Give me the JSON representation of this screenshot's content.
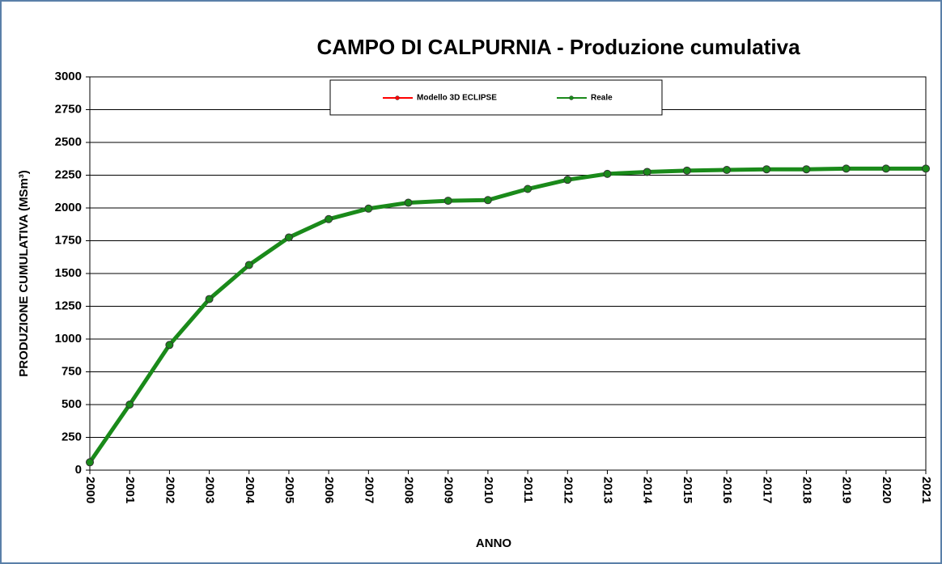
{
  "chart_data": {
    "type": "line",
    "title": "CAMPO DI CALPURNIA - Produzione cumulativa",
    "x_label": "ANNO",
    "y_label": "PRODUZIONE CUMULATIVA (MSm³)",
    "x": [
      2000,
      2001,
      2002,
      2003,
      2004,
      2005,
      2006,
      2007,
      2008,
      2009,
      2010,
      2011,
      2012,
      2013,
      2014,
      2015,
      2016,
      2017,
      2018,
      2019,
      2020,
      2021
    ],
    "series": [
      {
        "name": "Modello 3D ECLIPSE",
        "color": "#ff0000",
        "values": [
          null,
          null,
          null,
          null,
          null,
          null,
          null,
          null,
          null,
          null,
          null,
          null,
          null,
          null,
          null,
          null,
          null,
          null,
          null,
          null,
          null,
          null
        ]
      },
      {
        "name": "Reale",
        "color": "#1a8a1a",
        "values": [
          60,
          500,
          955,
          1305,
          1565,
          1775,
          1915,
          1995,
          2040,
          2055,
          2060,
          2145,
          2215,
          2260,
          2275,
          2285,
          2290,
          2295,
          2295,
          2300,
          2300,
          2300
        ]
      }
    ],
    "xlim": [
      2000,
      2021
    ],
    "xticks": [
      2000,
      2001,
      2002,
      2003,
      2004,
      2005,
      2006,
      2007,
      2008,
      2009,
      2010,
      2011,
      2012,
      2013,
      2014,
      2015,
      2016,
      2017,
      2018,
      2019,
      2020,
      2021
    ],
    "ylim": [
      0,
      3000
    ],
    "yticks": [
      0,
      250,
      500,
      750,
      1000,
      1250,
      1500,
      1750,
      2000,
      2250,
      2500,
      2750,
      3000
    ],
    "grid": true,
    "legend": "top"
  }
}
